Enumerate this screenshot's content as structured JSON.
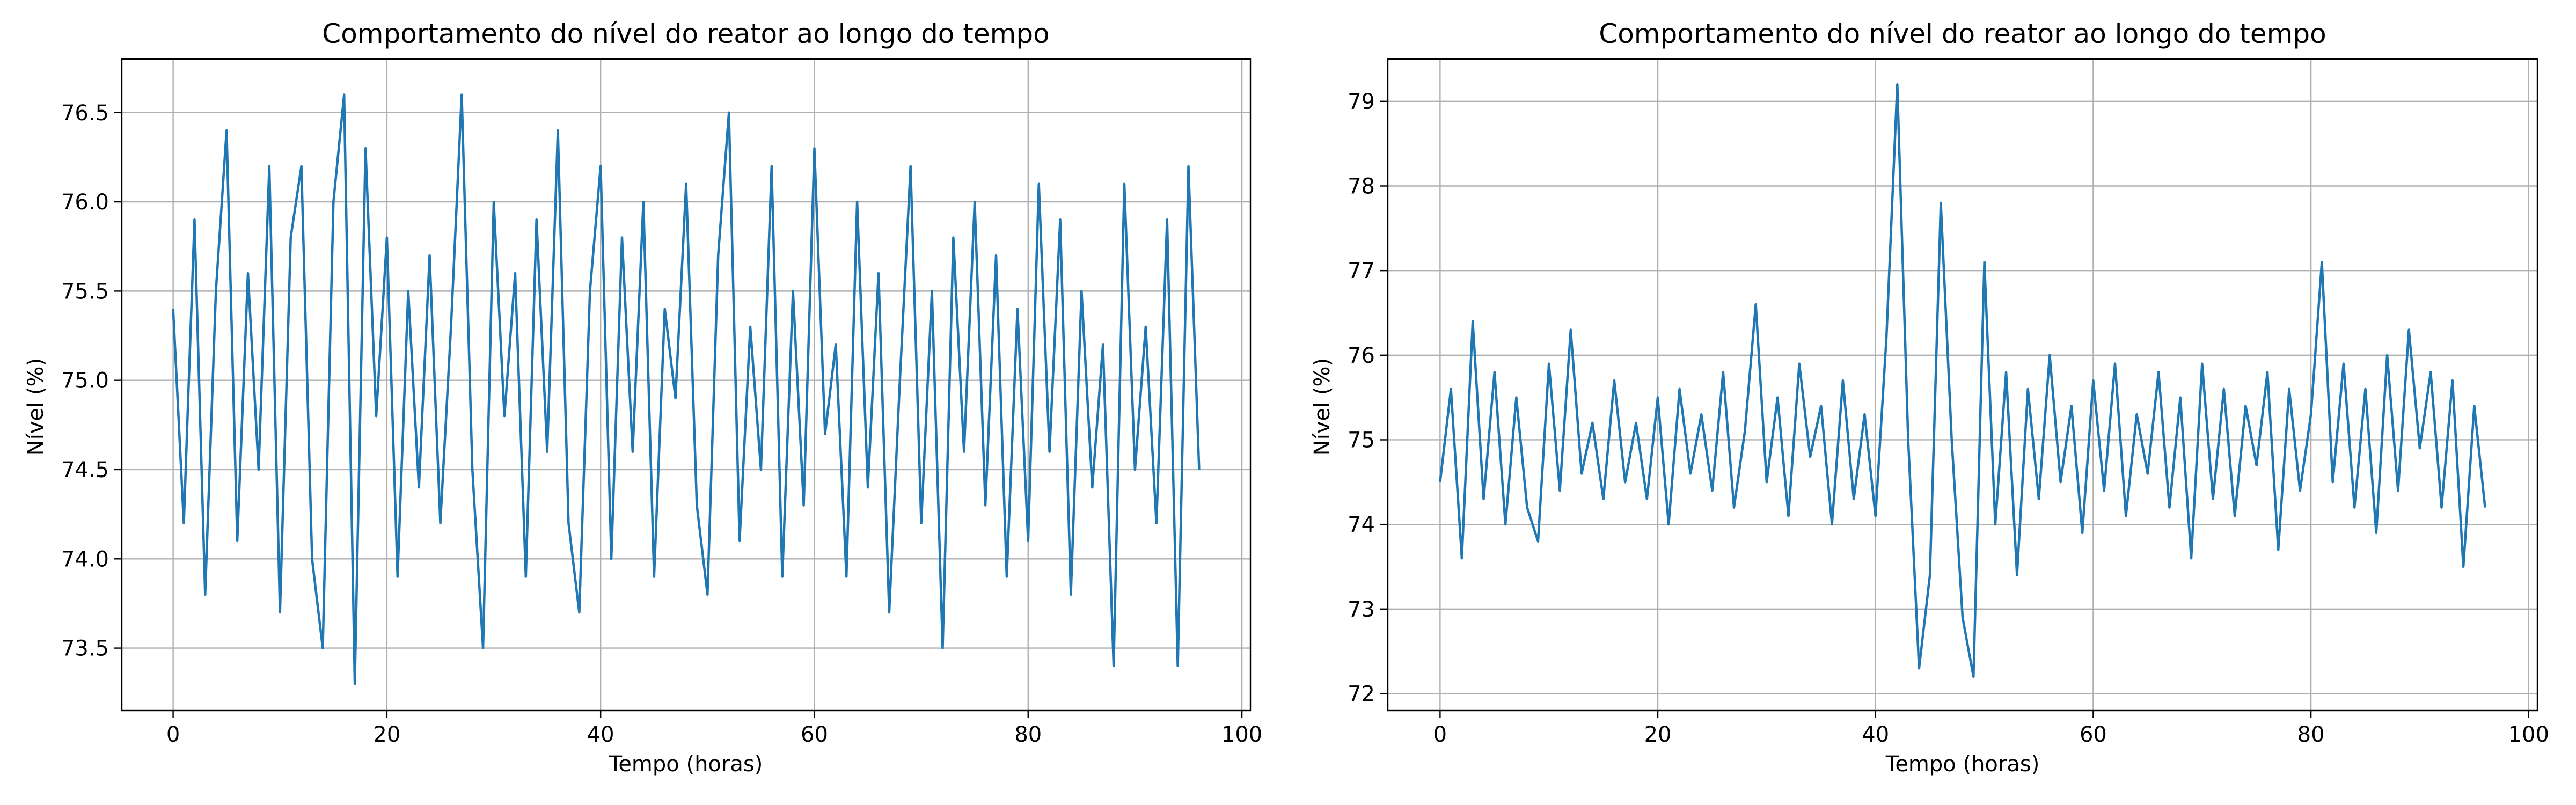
{
  "figure": {
    "background": "#ffffff",
    "grid_color": "#b0b0b0"
  },
  "chart_data": [
    {
      "type": "line",
      "title": "Comportamento do nível do reator ao longo do tempo",
      "xlabel": "Tempo (horas)",
      "ylabel": "Nível (%)",
      "xlim": [
        -4.8,
        100.8
      ],
      "ylim": [
        73.15,
        76.8
      ],
      "xticks": [
        0,
        20,
        40,
        60,
        80,
        100
      ],
      "yticks": [
        73.5,
        74.0,
        74.5,
        75.0,
        75.5,
        76.0,
        76.5
      ],
      "grid": true,
      "legend": "none",
      "series": [
        {
          "color": "#1f77b4",
          "description": "noisy level signal oscillating around 75.0 % between about 73.3 % and 76.6 % from 0 to 96 h",
          "x": [
            0,
            1,
            2,
            3,
            4,
            5,
            6,
            7,
            8,
            9,
            10,
            11,
            12,
            13,
            14,
            15,
            16,
            17,
            18,
            19,
            20,
            21,
            22,
            23,
            24,
            25,
            26,
            27,
            28,
            29,
            30,
            31,
            32,
            33,
            34,
            35,
            36,
            37,
            38,
            39,
            40,
            41,
            42,
            43,
            44,
            45,
            46,
            47,
            48,
            49,
            50,
            51,
            52,
            53,
            54,
            55,
            56,
            57,
            58,
            59,
            60,
            61,
            62,
            63,
            64,
            65,
            66,
            67,
            68,
            69,
            70,
            71,
            72,
            73,
            74,
            75,
            76,
            77,
            78,
            79,
            80,
            81,
            82,
            83,
            84,
            85,
            86,
            87,
            88,
            89,
            90,
            91,
            92,
            93,
            94,
            95,
            96
          ],
          "y": [
            75.4,
            74.2,
            75.9,
            73.8,
            75.5,
            76.4,
            74.1,
            75.6,
            74.5,
            76.2,
            73.7,
            75.8,
            76.2,
            74.0,
            73.5,
            76.0,
            76.6,
            73.3,
            76.3,
            74.8,
            75.8,
            73.9,
            75.5,
            74.4,
            75.7,
            74.2,
            75.3,
            76.6,
            74.5,
            73.5,
            76.0,
            74.8,
            75.6,
            73.9,
            75.9,
            74.6,
            76.4,
            74.2,
            73.7,
            75.5,
            76.2,
            74.0,
            75.8,
            74.6,
            76.0,
            73.9,
            75.4,
            74.9,
            76.1,
            74.3,
            73.8,
            75.7,
            76.5,
            74.1,
            75.3,
            74.5,
            76.2,
            73.9,
            75.5,
            74.3,
            76.3,
            74.7,
            75.2,
            73.9,
            76.0,
            74.4,
            75.6,
            73.7,
            75.0,
            76.2,
            74.2,
            75.5,
            73.5,
            75.8,
            74.6,
            76.0,
            74.3,
            75.7,
            73.9,
            75.4,
            74.1,
            76.1,
            74.6,
            75.9,
            73.8,
            75.5,
            74.4,
            75.2,
            73.4,
            76.1,
            74.5,
            75.3,
            74.2,
            75.9,
            73.4,
            76.2,
            74.5
          ]
        }
      ]
    },
    {
      "type": "line",
      "title": "Comportamento do nível do reator ao longo do tempo",
      "xlabel": "Tempo (horas)",
      "ylabel": "Nível (%)",
      "xlim": [
        -4.8,
        100.8
      ],
      "ylim": [
        71.8,
        79.5
      ],
      "xticks": [
        0,
        20,
        40,
        60,
        80,
        100
      ],
      "yticks": [
        72,
        73,
        74,
        75,
        76,
        77,
        78,
        79
      ],
      "grid": true,
      "legend": "none",
      "series": [
        {
          "color": "#1f77b4",
          "description": "level signal around 75 % with a disturbance near 41-50 h (peak about 79.2 %, dips about 72.1 %)",
          "x": [
            0,
            1,
            2,
            3,
            4,
            5,
            6,
            7,
            8,
            9,
            10,
            11,
            12,
            13,
            14,
            15,
            16,
            17,
            18,
            19,
            20,
            21,
            22,
            23,
            24,
            25,
            26,
            27,
            28,
            29,
            30,
            31,
            32,
            33,
            34,
            35,
            36,
            37,
            38,
            39,
            40,
            41,
            42,
            43,
            44,
            45,
            46,
            47,
            48,
            49,
            50,
            51,
            52,
            53,
            54,
            55,
            56,
            57,
            58,
            59,
            60,
            61,
            62,
            63,
            64,
            65,
            66,
            67,
            68,
            69,
            70,
            71,
            72,
            73,
            74,
            75,
            76,
            77,
            78,
            79,
            80,
            81,
            82,
            83,
            84,
            85,
            86,
            87,
            88,
            89,
            90,
            91,
            92,
            93,
            94,
            95,
            96
          ],
          "y": [
            74.5,
            75.6,
            73.6,
            76.4,
            74.3,
            75.8,
            74.0,
            75.5,
            74.2,
            73.8,
            75.9,
            74.4,
            76.3,
            74.6,
            75.2,
            74.3,
            75.7,
            74.5,
            75.2,
            74.3,
            75.5,
            74.0,
            75.6,
            74.6,
            75.3,
            74.4,
            75.8,
            74.2,
            75.1,
            76.6,
            74.5,
            75.5,
            74.1,
            75.9,
            74.8,
            75.4,
            74.0,
            75.7,
            74.3,
            75.3,
            74.1,
            76.2,
            79.2,
            75.0,
            72.3,
            73.4,
            77.8,
            75.0,
            72.9,
            72.2,
            77.1,
            74.0,
            75.8,
            73.4,
            75.6,
            74.3,
            76.0,
            74.5,
            75.4,
            73.9,
            75.7,
            74.4,
            75.9,
            74.1,
            75.3,
            74.6,
            75.8,
            74.2,
            75.5,
            73.6,
            75.9,
            74.3,
            75.6,
            74.1,
            75.4,
            74.7,
            75.8,
            73.7,
            75.6,
            74.4,
            75.3,
            77.1,
            74.5,
            75.9,
            74.2,
            75.6,
            73.9,
            76.0,
            74.4,
            76.3,
            74.9,
            75.8,
            74.2,
            75.7,
            73.5,
            75.4,
            74.2
          ]
        }
      ]
    }
  ]
}
